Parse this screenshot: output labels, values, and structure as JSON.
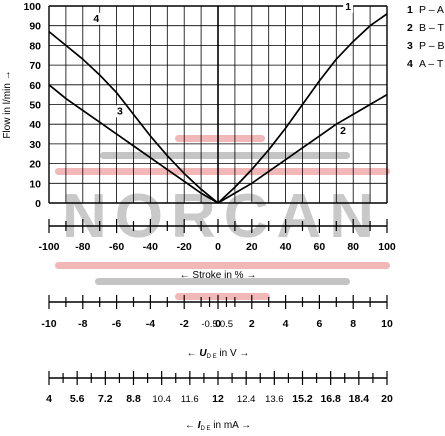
{
  "chart_data": {
    "type": "line",
    "ylabel": "Flow in l/min →",
    "xlabel": "← Stroke in % →",
    "ylim": [
      0,
      100
    ],
    "xlim": [
      -100,
      100
    ],
    "y_ticks": [
      "100",
      "90",
      "80",
      "70",
      "60",
      "50",
      "40",
      "30",
      "20",
      "10",
      "0"
    ],
    "x_ticks": [
      "-100",
      "-80",
      "-60",
      "-40",
      "-20",
      "0",
      "20",
      "40",
      "60",
      "80",
      "100"
    ],
    "grid": true,
    "series": [
      {
        "name": "1",
        "x": [
          0,
          10,
          20,
          30,
          40,
          50,
          60,
          70,
          80,
          90,
          100
        ],
        "y": [
          0,
          8,
          17,
          27,
          38,
          50,
          62,
          73,
          82,
          90,
          96
        ]
      },
      {
        "name": "2",
        "x": [
          0,
          10,
          20,
          30,
          40,
          50,
          60,
          70,
          80,
          90,
          100
        ],
        "y": [
          0,
          5,
          10,
          16,
          22,
          28,
          34,
          40,
          45,
          50,
          55
        ]
      },
      {
        "name": "3",
        "x": [
          0,
          -10,
          -20,
          -30,
          -40,
          -50,
          -60,
          -70,
          -80,
          -90,
          -100
        ],
        "y": [
          0,
          5,
          11,
          17,
          23,
          29,
          35,
          41,
          47,
          53,
          60
        ]
      },
      {
        "name": "4",
        "x": [
          0,
          -10,
          -20,
          -30,
          -40,
          -50,
          -60,
          -70,
          -80,
          -90,
          -100
        ],
        "y": [
          0,
          7,
          15,
          24,
          34,
          45,
          56,
          65,
          73,
          80,
          87
        ]
      }
    ],
    "series_label_positions": [
      {
        "name": "1",
        "x": 77,
        "y": 98
      },
      {
        "name": "2",
        "x": 74,
        "y": 35
      },
      {
        "name": "3",
        "x": -58,
        "y": 45
      },
      {
        "name": "4",
        "x": -72,
        "y": 92
      }
    ],
    "legend": {
      "placement": "top-right",
      "entries": [
        {
          "num": "1",
          "label": "P – A"
        },
        {
          "num": "2",
          "label": "B – T"
        },
        {
          "num": "3",
          "label": "P – B"
        },
        {
          "num": "4",
          "label": "A – T"
        }
      ]
    },
    "voltage_scale": {
      "title_prefix": "← ",
      "title_symbol": "U",
      "title_subscript": "D E",
      "title_suffix": " in V →",
      "labels": [
        {
          "v": -10,
          "t": "-10",
          "small": false
        },
        {
          "v": -8,
          "t": "-8",
          "small": false
        },
        {
          "v": -6,
          "t": "-6",
          "small": false
        },
        {
          "v": -4,
          "t": "-4",
          "small": false
        },
        {
          "v": -2,
          "t": "-2",
          "small": false
        },
        {
          "v": -0.5,
          "t": "-0.5",
          "small": true
        },
        {
          "v": 0,
          "t": "0",
          "small": false
        },
        {
          "v": 0.5,
          "t": "0.5",
          "small": true
        },
        {
          "v": 2,
          "t": "2",
          "small": false
        },
        {
          "v": 4,
          "t": "4",
          "small": false
        },
        {
          "v": 6,
          "t": "6",
          "small": false
        },
        {
          "v": 8,
          "t": "8",
          "small": false
        },
        {
          "v": 10,
          "t": "10",
          "small": false
        }
      ]
    },
    "current_scale": {
      "title_prefix": "← ",
      "title_symbol": "I",
      "title_subscript": "D E",
      "title_suffix": " in mA →",
      "labels": [
        "4",
        "5.6",
        "7.2",
        "8.8",
        "10.4",
        "11.6",
        "12",
        "12.4",
        "13.6",
        "15.2",
        "16.8",
        "18.4",
        "20"
      ],
      "small_labels": [
        "10.4",
        "11.6",
        "12.4",
        "13.6"
      ]
    }
  },
  "watermark": {
    "text": "NORCAN",
    "text_color": "#c9c9c9",
    "accent_color": "#f2b8b8",
    "bar_color": "#c4c4c4"
  }
}
